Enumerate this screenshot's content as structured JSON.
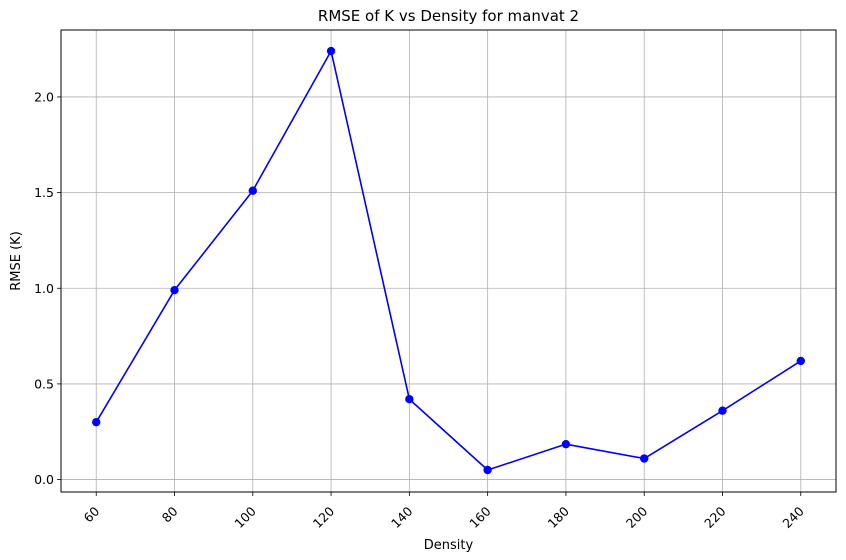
{
  "chart_data": {
    "type": "line",
    "title": "RMSE of K vs Density for manvat 2",
    "xlabel": "Density",
    "ylabel": "RMSE (K)",
    "x": [
      60,
      80,
      100,
      120,
      140,
      160,
      180,
      200,
      220,
      240
    ],
    "x_tick_labels": [
      "60",
      "80",
      "100",
      "120",
      "140",
      "160",
      "180",
      "200",
      "220",
      "240"
    ],
    "x_tick_rotation_deg": 45,
    "y_ticks": [
      0.0,
      0.5,
      1.0,
      1.5,
      2.0
    ],
    "y_tick_labels": [
      "0.0",
      "0.5",
      "1.0",
      "1.5",
      "2.0"
    ],
    "xlim": [
      51,
      249
    ],
    "ylim": [
      -0.065,
      2.35
    ],
    "grid": true,
    "series": [
      {
        "color": "#0000ff",
        "marker": "circle",
        "values": [
          0.3,
          0.99,
          1.51,
          2.24,
          0.42,
          0.05,
          0.185,
          0.11,
          0.36,
          0.62
        ]
      }
    ]
  }
}
